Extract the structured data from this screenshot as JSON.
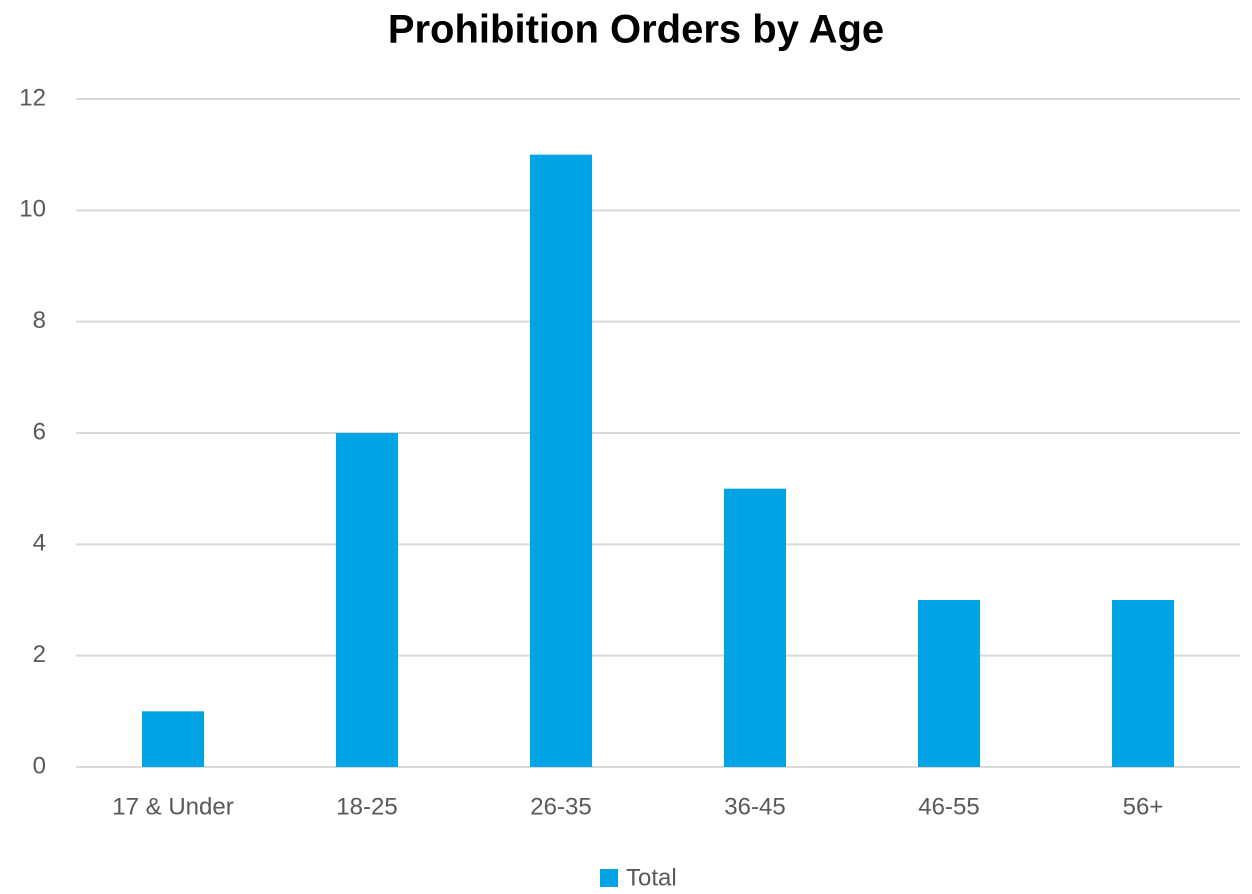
{
  "chart_data": {
    "type": "bar",
    "title": "Prohibition Orders by Age",
    "categories": [
      "17 & Under",
      "18-25",
      "26-35",
      "36-45",
      "46-55",
      "56+"
    ],
    "series": [
      {
        "name": "Total",
        "color": "#00a4e4",
        "values": [
          1,
          6,
          11,
          5,
          3,
          3
        ]
      }
    ],
    "ylim": [
      0,
      12
    ],
    "yticks": [
      0,
      2,
      4,
      6,
      8,
      10,
      12
    ],
    "grid": true,
    "legend": "bottom"
  }
}
